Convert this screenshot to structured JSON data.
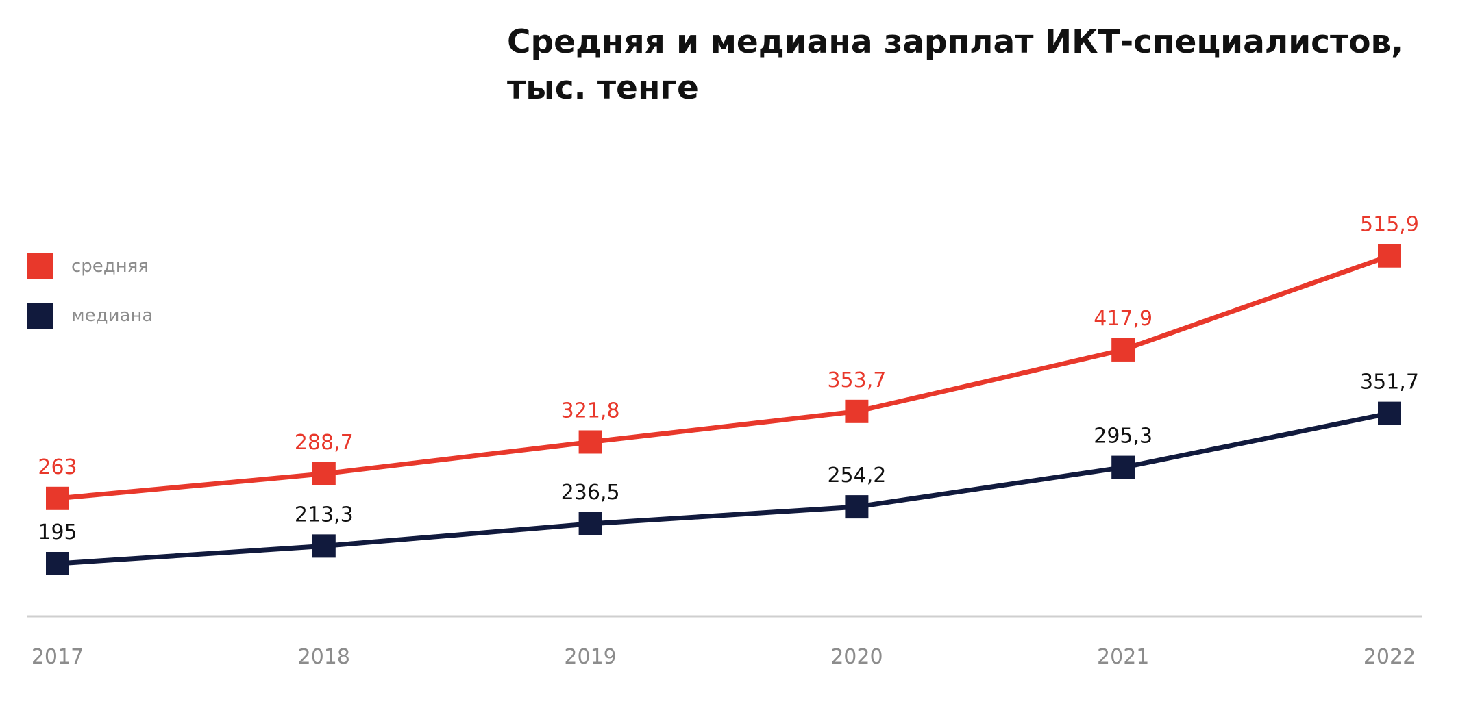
{
  "chart_data": {
    "type": "line",
    "title_lines": [
      "Средняя и медиана зарплат ИКТ-специалистов,",
      "тыс. тенге"
    ],
    "title": "Средняя и медиана зарплат ИКТ-специалистов, тыс. тенге",
    "xlabel": "",
    "ylabel": "",
    "x": [
      "2017",
      "2018",
      "2019",
      "2020",
      "2021",
      "2022"
    ],
    "ylim": [
      140,
      540
    ],
    "grid": false,
    "legend_position": "left",
    "series": [
      {
        "name": "средняя",
        "color": "#e8382b",
        "values": [
          263,
          288.7,
          321.8,
          353.7,
          417.9,
          515.9
        ],
        "labels": [
          "263",
          "288,7",
          "321,8",
          "353,7",
          "417,9",
          "515,9"
        ]
      },
      {
        "name": "медиана",
        "color": "#111a3d",
        "values": [
          195,
          213.3,
          236.5,
          254.2,
          295.3,
          351.7
        ],
        "labels": [
          "195",
          "213,3",
          "236,5",
          "254,2",
          "295,3",
          "351,7"
        ]
      }
    ],
    "colors": {
      "axis_line": "#cfcfcf",
      "tick_label": "#8c8c8c",
      "median_label": "#111111",
      "legend_label": "#8c8c8c"
    }
  }
}
